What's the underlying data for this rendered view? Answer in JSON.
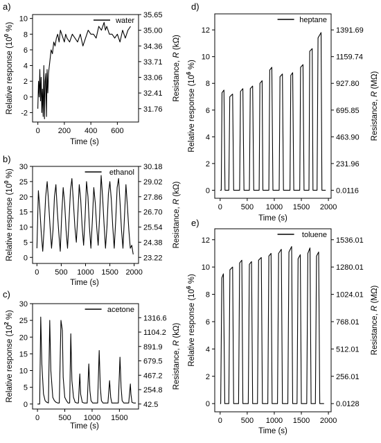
{
  "figure": {
    "panel_count": 5
  },
  "chart_data": [
    {
      "type": "line",
      "panel_label": "a)",
      "legend": "water",
      "xlabel": "Time (s)",
      "ylabel_left": [
        "Relative response (10",
        "0",
        " %)"
      ],
      "ylabel_right": [
        "Resistance, ",
        "R",
        " (kΩ)"
      ],
      "xlim": [
        -40,
        760
      ],
      "ylim": [
        -3.2,
        10.5
      ],
      "x_ticks": [
        0,
        200,
        400,
        600
      ],
      "y_ticks": [
        -2,
        0,
        2,
        4,
        6,
        8,
        10
      ],
      "right_ticks": [
        {
          "y": -1.5,
          "label": "31.76"
        },
        {
          "y": 0.5,
          "label": "32.41"
        },
        {
          "y": 2.5,
          "label": "33.06"
        },
        {
          "y": 4.5,
          "label": "33.71"
        },
        {
          "y": 6.5,
          "label": "34.36"
        },
        {
          "y": 8.5,
          "label": "35.00"
        },
        {
          "y": 10.5,
          "label": "35.65"
        }
      ],
      "series": [
        {
          "x": [
            0,
            5,
            10,
            15,
            20,
            25,
            30,
            35,
            40,
            45,
            50,
            55,
            60,
            65,
            70,
            75,
            80,
            90,
            100,
            110,
            120,
            130,
            140,
            150,
            160,
            170,
            180,
            190,
            200,
            210,
            220,
            240,
            260,
            280,
            300,
            320,
            340,
            360,
            380,
            400,
            420,
            440,
            460,
            480,
            500,
            510,
            520,
            540,
            560,
            580,
            600,
            620,
            640,
            660,
            680,
            700
          ],
          "y": [
            -1.5,
            2,
            0,
            3.5,
            -0.5,
            2.5,
            -2,
            1,
            -2.5,
            4,
            -2.8,
            2,
            3,
            -2.5,
            3.5,
            0.5,
            3,
            4.5,
            6,
            5.5,
            7,
            6.5,
            7.5,
            8,
            7,
            8.5,
            8,
            7.5,
            7,
            8,
            7.5,
            7,
            8,
            7.5,
            7,
            8,
            6.5,
            7.5,
            8.5,
            8,
            8,
            7.5,
            9,
            8.5,
            9.5,
            8.5,
            9,
            8,
            8,
            7.5,
            8,
            7,
            8.5,
            7.5,
            8.5,
            9
          ]
        }
      ]
    },
    {
      "type": "line",
      "panel_label": "b)",
      "legend": "ethanol",
      "xlabel": "Time (s)",
      "ylabel_left": [
        "Relative response (10",
        "0",
        " %)"
      ],
      "ylabel_right": [
        "Resistance, ",
        "R",
        " (kΩ)"
      ],
      "xlim": [
        -90,
        2090
      ],
      "ylim": [
        -2,
        30
      ],
      "x_ticks": [
        0,
        500,
        1000,
        1500,
        2000
      ],
      "y_ticks": [
        0,
        5,
        10,
        15,
        20,
        25,
        30
      ],
      "right_ticks": [
        {
          "y": 0,
          "label": "23.22"
        },
        {
          "y": 5,
          "label": "24.38"
        },
        {
          "y": 10,
          "label": "25.54"
        },
        {
          "y": 15,
          "label": "26.70"
        },
        {
          "y": 20,
          "label": "27.86"
        },
        {
          "y": 25,
          "label": "29.02"
        },
        {
          "y": 30,
          "label": "30.18"
        }
      ],
      "series": [
        {
          "x": [
            0,
            30,
            60,
            90,
            120,
            150,
            180,
            210,
            240,
            270,
            300,
            330,
            360,
            390,
            420,
            450,
            480,
            510,
            540,
            570,
            600,
            630,
            660,
            690,
            720,
            750,
            780,
            810,
            840,
            870,
            900,
            930,
            960,
            990,
            1020,
            1050,
            1080,
            1110,
            1140,
            1170,
            1200,
            1230,
            1260,
            1290,
            1320,
            1350,
            1380,
            1410,
            1440,
            1470,
            1500,
            1530,
            1560,
            1590,
            1620,
            1650,
            1680,
            1710,
            1740,
            1770,
            1800,
            1830,
            1860,
            1890,
            1920,
            1950,
            1980
          ],
          "y": [
            3,
            22,
            16,
            8,
            2,
            10,
            20,
            25,
            18,
            10,
            3,
            9,
            20,
            24,
            15,
            8,
            2,
            14,
            23,
            18,
            9,
            3,
            12,
            22,
            26,
            18,
            10,
            5,
            14,
            24,
            19,
            10,
            4,
            13,
            25,
            20,
            10,
            3,
            12,
            23,
            18,
            10,
            4,
            14,
            27,
            20,
            11,
            3,
            10,
            21,
            25,
            19,
            10,
            3,
            12,
            23,
            26,
            18,
            9,
            3,
            13,
            24,
            17,
            9,
            3,
            4,
            1
          ]
        }
      ]
    },
    {
      "type": "line",
      "panel_label": "c)",
      "legend": "acetone",
      "xlabel": "Time (s)",
      "ylabel_left": [
        "Relative response (10",
        "2",
        " %)"
      ],
      "ylabel_right": [
        "Resistance, ",
        "R",
        " (kΩ)"
      ],
      "xlim": [
        -90,
        1850
      ],
      "ylim": [
        -1.5,
        30
      ],
      "x_ticks": [
        0,
        500,
        1000,
        1500
      ],
      "y_ticks": [
        0,
        5,
        10,
        15,
        20,
        25,
        30
      ],
      "right_ticks": [
        {
          "y": 0,
          "label": "42.5"
        },
        {
          "y": 4.3,
          "label": "254.8"
        },
        {
          "y": 8.6,
          "label": "467.2"
        },
        {
          "y": 12.9,
          "label": "679.5"
        },
        {
          "y": 17.2,
          "label": "891.9"
        },
        {
          "y": 21.5,
          "label": "1104.2"
        },
        {
          "y": 25.8,
          "label": "1316.6"
        }
      ],
      "series": [
        {
          "x": [
            0,
            40,
            60,
            80,
            110,
            140,
            170,
            200,
            225,
            245,
            280,
            310,
            340,
            370,
            400,
            430,
            455,
            470,
            500,
            530,
            560,
            590,
            610,
            630,
            660,
            690,
            720,
            750,
            775,
            790,
            820,
            850,
            880,
            910,
            940,
            960,
            980,
            1010,
            1040,
            1070,
            1100,
            1130,
            1150,
            1170,
            1200,
            1230,
            1260,
            1290,
            1320,
            1340,
            1360,
            1390,
            1420,
            1450,
            1480,
            1510,
            1530,
            1550,
            1580,
            1610,
            1640,
            1670,
            1700,
            1710,
            1730,
            1760,
            1800
          ],
          "y": [
            0,
            0,
            26,
            12,
            3,
            1,
            0.5,
            0.3,
            25,
            10,
            2,
            1,
            0.5,
            0.3,
            0.3,
            25,
            22,
            8,
            2,
            1,
            0.3,
            0.3,
            21,
            7,
            2,
            0.5,
            0.3,
            0.3,
            9,
            3,
            0.5,
            0.3,
            0.3,
            0.3,
            12,
            4,
            1,
            0.3,
            0.3,
            0.3,
            0.3,
            16,
            5,
            1,
            0.3,
            0.3,
            0.3,
            0.3,
            7,
            2,
            0.3,
            0.3,
            0.3,
            0.3,
            0.3,
            14,
            5,
            1,
            0.3,
            0.3,
            0.3,
            0.3,
            6,
            3,
            0.5,
            0.3,
            0.3
          ]
        }
      ]
    },
    {
      "type": "line",
      "panel_label": "d)",
      "legend": "heptane",
      "xlabel": "Time (s)",
      "ylabel_left": [
        "Relative response (10",
        "6",
        " %)"
      ],
      "ylabel_right": [
        "Resistance, ",
        "R",
        " (MΩ)"
      ],
      "xlim": [
        -100,
        2050
      ],
      "ylim": [
        -0.6,
        13.2
      ],
      "x_ticks": [
        0,
        500,
        1000,
        1500,
        2000
      ],
      "y_ticks": [
        0,
        2,
        4,
        6,
        8,
        10,
        12
      ],
      "right_ticks": [
        {
          "y": 0,
          "label": "0.0116"
        },
        {
          "y": 2,
          "label": "231.96"
        },
        {
          "y": 4,
          "label": "463.90"
        },
        {
          "y": 6,
          "label": "695.85"
        },
        {
          "y": 8,
          "label": "927.80"
        },
        {
          "y": 10,
          "label": "1159.74"
        },
        {
          "y": 12,
          "label": "1391.69"
        }
      ],
      "peaks": [
        {
          "start": 20,
          "end": 90,
          "height": 7.5
        },
        {
          "start": 160,
          "end": 250,
          "height": 7.2
        },
        {
          "start": 360,
          "end": 440,
          "height": 7.6
        },
        {
          "start": 540,
          "end": 620,
          "height": 7.8
        },
        {
          "start": 720,
          "end": 790,
          "height": 8.2
        },
        {
          "start": 900,
          "end": 975,
          "height": 9.2
        },
        {
          "start": 1090,
          "end": 1170,
          "height": 8.7
        },
        {
          "start": 1290,
          "end": 1360,
          "height": 8.8
        },
        {
          "start": 1470,
          "end": 1550,
          "height": 9.4
        },
        {
          "start": 1640,
          "end": 1715,
          "height": 10.6
        },
        {
          "start": 1790,
          "end": 1880,
          "height": 11.8
        }
      ],
      "series": [
        {
          "x": [
            0,
            20,
            35,
            70,
            90,
            160,
            178,
            230,
            250,
            360,
            376,
            420,
            440,
            540,
            556,
            600,
            620,
            720,
            735,
            775,
            790,
            900,
            916,
            955,
            975,
            1090,
            1106,
            1150,
            1170,
            1290,
            1305,
            1340,
            1360,
            1470,
            1486,
            1530,
            1550,
            1640,
            1655,
            1700,
            1715,
            1790,
            1808,
            1865,
            1880,
            1950
          ],
          "y": [
            0,
            0,
            7.3,
            7.5,
            0,
            0,
            7.0,
            7.2,
            0,
            0,
            7.4,
            7.6,
            0,
            0,
            7.6,
            7.8,
            0,
            0,
            8.0,
            8.2,
            0,
            0,
            9.0,
            9.2,
            0,
            0,
            8.5,
            8.7,
            0,
            0,
            8.6,
            8.8,
            0,
            0,
            9.2,
            9.4,
            0,
            0,
            10.4,
            10.6,
            0,
            0,
            11.4,
            11.8,
            0,
            0
          ]
        }
      ]
    },
    {
      "type": "line",
      "panel_label": "e)",
      "legend": "toluene",
      "xlabel": "Time (s)",
      "ylabel_left": [
        "Relative response (10",
        "6",
        " %)"
      ],
      "ylabel_right": [
        "Resistance, ",
        "R",
        " (MΩ)"
      ],
      "xlim": [
        -100,
        2050
      ],
      "ylim": [
        -0.6,
        12.8
      ],
      "x_ticks": [
        0,
        500,
        1000,
        1500,
        2000
      ],
      "y_ticks": [
        0,
        2,
        4,
        6,
        8,
        10,
        12
      ],
      "right_ticks": [
        {
          "y": 0,
          "label": "0.0128"
        },
        {
          "y": 2,
          "label": "256.01"
        },
        {
          "y": 4,
          "label": "512.01"
        },
        {
          "y": 6,
          "label": "768.01"
        },
        {
          "y": 8,
          "label": "1024.01"
        },
        {
          "y": 10,
          "label": "1280.01"
        },
        {
          "y": 12,
          "label": "1536.01"
        }
      ],
      "series": [
        {
          "x": [
            0,
            10,
            30,
            60,
            85,
            160,
            180,
            230,
            250,
            340,
            360,
            400,
            420,
            520,
            540,
            580,
            600,
            690,
            710,
            760,
            780,
            880,
            900,
            940,
            960,
            1060,
            1080,
            1130,
            1150,
            1250,
            1270,
            1320,
            1340,
            1420,
            1440,
            1480,
            1500,
            1600,
            1620,
            1660,
            1680,
            1760,
            1780,
            1820,
            1840,
            1920
          ],
          "y": [
            0,
            0,
            9.2,
            9.5,
            0,
            0,
            9.8,
            10.0,
            0,
            0,
            10.3,
            10.5,
            0,
            0,
            10.2,
            10.4,
            0,
            0,
            10.5,
            10.7,
            0,
            0,
            10.8,
            11.0,
            0,
            0,
            11.0,
            11.3,
            0,
            0,
            11.1,
            11.5,
            0,
            0,
            10.6,
            10.9,
            0,
            0,
            11.0,
            11.4,
            0,
            0,
            10.8,
            11.1,
            0,
            0
          ]
        }
      ]
    }
  ]
}
